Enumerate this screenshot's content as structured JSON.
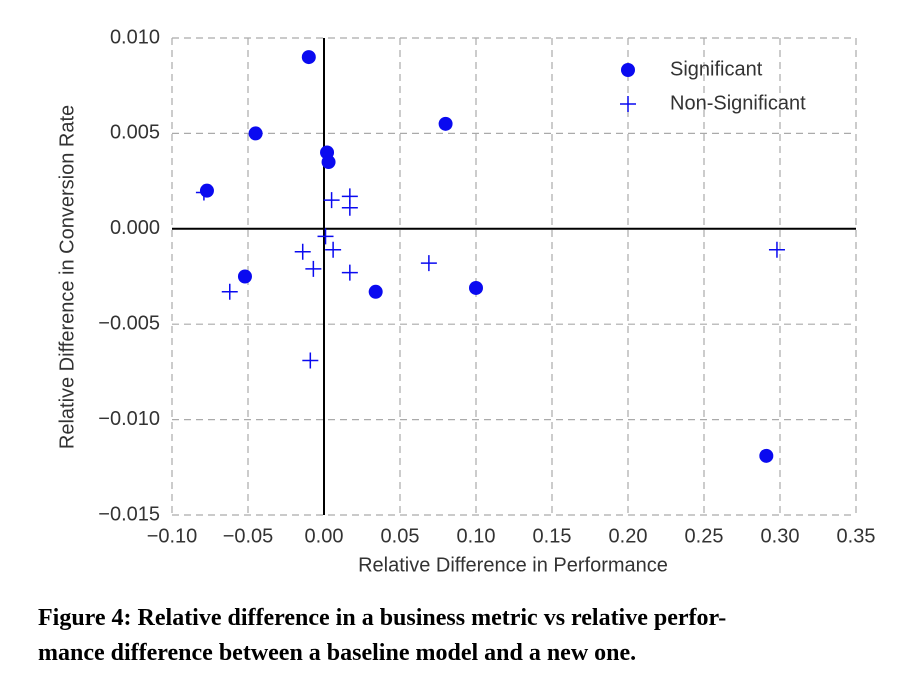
{
  "chart_data": {
    "type": "scatter",
    "xlabel": "Relative Difference in Performance",
    "ylabel": "Relative Difference in Conversion Rate",
    "caption": [
      "Figure 4: Relative difference in a business metric vs relative perfor-",
      "mance difference between a baseline model and a new one."
    ],
    "xlim": [
      -0.1,
      0.35
    ],
    "ylim": [
      -0.015,
      0.01
    ],
    "xticks": [
      {
        "value": -0.1,
        "label": "−0.10"
      },
      {
        "value": -0.05,
        "label": "−0.05"
      },
      {
        "value": 0,
        "label": "0.00"
      },
      0.05,
      {
        "value": 0.1,
        "label": "0.10"
      },
      0.15,
      {
        "value": 0.2,
        "label": "0.20"
      },
      0.25,
      {
        "value": 0.3,
        "label": "0.30"
      },
      0.35
    ],
    "yticks": [
      {
        "value": 0.01,
        "label": "0.010"
      },
      0.005,
      {
        "value": 0,
        "label": "0.000"
      },
      {
        "value": -0.005,
        "label": "−0.005"
      },
      {
        "value": -0.01,
        "label": "−0.010"
      },
      {
        "value": -0.015,
        "label": "−0.015"
      }
    ],
    "grid": true,
    "legend": "upper right",
    "series": [
      {
        "name": "Significant",
        "color": "#0a0af0",
        "marker": "circle",
        "x": [
          -0.077,
          -0.045,
          -0.01,
          0.002,
          0.003,
          0.08,
          -0.052,
          0.034,
          0.1,
          0.291
        ],
        "values": [
          0.002,
          0.005,
          0.009,
          0.004,
          0.0035,
          0.0055,
          -0.0025,
          -0.0033,
          -0.0031,
          -0.0119
        ]
      },
      {
        "name": "Non-Significant",
        "color": "#0a0af0",
        "marker": "plus",
        "x": [
          -0.079,
          0.005,
          0.017,
          0.017,
          0.001,
          0.006,
          -0.014,
          -0.007,
          0.017,
          0.069,
          -0.062,
          -0.009,
          0.298
        ],
        "values": [
          0.0019,
          0.0015,
          0.0017,
          0.0011,
          -0.0004,
          -0.0011,
          -0.0012,
          -0.0021,
          -0.0023,
          -0.0018,
          -0.0033,
          -0.0069,
          -0.0011
        ]
      }
    ]
  }
}
